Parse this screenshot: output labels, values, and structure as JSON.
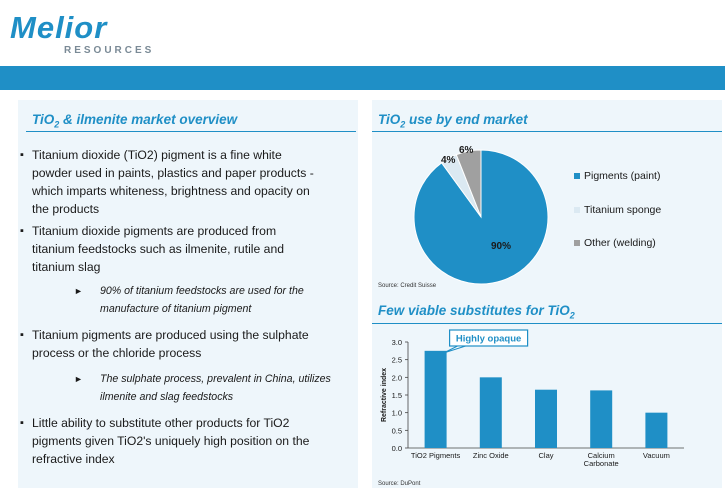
{
  "header": {
    "logo_word": "Melior",
    "logo_sub": "RESOURCES",
    "band_color": "#1f8fc6"
  },
  "left": {
    "title_pre": "TiO",
    "title_sub": "2",
    "title_post": " & ilmenite market overview",
    "bullets": [
      {
        "lines": [
          "Titanium dioxide (TiO2) pigment is a fine white",
          "powder used in paints, plastics and paper products -",
          "which imparts whiteness, brightness and opacity on",
          "the products"
        ]
      },
      {
        "lines": [
          "Titanium dioxide pigments are produced from",
          "titanium feedstocks such as ilmenite, rutile and",
          "titanium slag"
        ]
      },
      {
        "lines": [
          "Titanium pigments are produced using the sulphate",
          "process or the chloride process"
        ]
      },
      {
        "lines": [
          "Little ability to substitute other products for TiO2",
          "pigments given TiO2's uniquely high position on the",
          "refractive index"
        ]
      }
    ],
    "subs": [
      {
        "lines": [
          "90% of titanium feedstocks are used for the",
          "manufacture of titanium pigment"
        ]
      },
      {
        "lines": [
          "The sulphate process, prevalent in China, utilizes",
          "ilmenite and slag feedstocks"
        ]
      }
    ],
    "bullet_marker": "▪",
    "sub_marker": "►"
  },
  "right_top": {
    "title_pre": "TiO",
    "title_sub": "2",
    "title_post": " use by end market",
    "source": "Source: Credit Suisse"
  },
  "right_bottom": {
    "title_pre": "Few viable substitutes for TiO",
    "title_sub": "2",
    "callout": "Highly opaque",
    "source": "Source: DuPont"
  },
  "chart_data": [
    {
      "type": "pie",
      "categories": [
        "Pigments (paint)",
        "Titanium sponge",
        "Other (welding)"
      ],
      "values": [
        90,
        4,
        6
      ],
      "labels": [
        "90%",
        "4%",
        "6%"
      ],
      "colors": [
        "#1f8fc6",
        "#dbe9f2",
        "#a0a0a0"
      ],
      "legend": "right"
    },
    {
      "type": "bar",
      "categories": [
        "TiO2 Pigments",
        "Zinc Oxide",
        "Clay",
        "Calcium Carbonate",
        "Vacuum"
      ],
      "values": [
        2.75,
        2.0,
        1.65,
        1.63,
        1.0
      ],
      "ylabel": "Refractive index",
      "yticks": [
        "0.0",
        "0.5",
        "1.0",
        "1.5",
        "2.0",
        "2.5",
        "3.0"
      ],
      "ylim": [
        0,
        3.0
      ],
      "color": "#1f8fc6"
    }
  ]
}
